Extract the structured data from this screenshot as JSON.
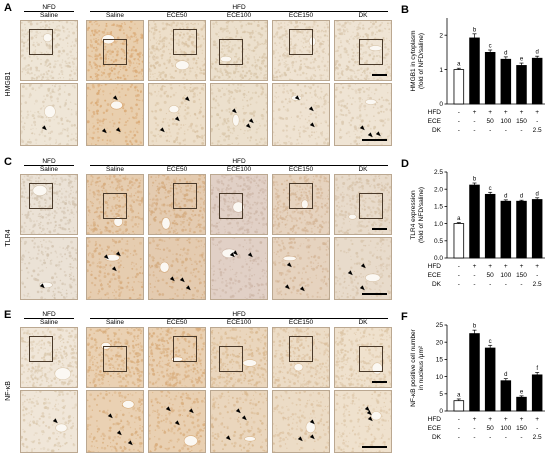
{
  "image_panels": [
    {
      "letter": "A",
      "stain": "HMGB1",
      "top": 0,
      "group_nfd": "NFD",
      "group_hfd": "HFD",
      "columns": [
        "Saline",
        "Saline",
        "ECE50",
        "ECE100",
        "ECE150",
        "DK"
      ],
      "tints": [
        "#efe6d7",
        "#e9cfae",
        "#eddfca",
        "#ece0cd",
        "#efe3d2",
        "#efe4d4"
      ],
      "dark_tints": [
        "#d8c8b0",
        "#d9a873",
        "#d7c0a0",
        "#d7c4a7",
        "#d9c6ab",
        "#d9c7ad"
      ]
    },
    {
      "letter": "C",
      "stain": "TLR4",
      "top": 154,
      "group_nfd": "NFD",
      "group_hfd": "HFD",
      "columns": [
        "Saline",
        "Saline",
        "ECE50",
        "ECE100",
        "ECE150",
        "DK"
      ],
      "tints": [
        "#ebe2d6",
        "#e6cdb0",
        "#e4cbb0",
        "#e1d0c6",
        "#e6d3bf",
        "#e8dbcb"
      ],
      "dark_tints": [
        "#d2c3af",
        "#d6ab7d",
        "#d4ab7f",
        "#cdb6a7",
        "#d4b596",
        "#d6c2a9"
      ]
    },
    {
      "letter": "E",
      "stain": "NF-κB",
      "top": 307,
      "group_nfd": "NFD",
      "group_hfd": "HFD",
      "columns": [
        "Saline",
        "Saline",
        "ECE50",
        "ECE100",
        "ECE150",
        "DK"
      ],
      "tints": [
        "#f0e6d8",
        "#ead1b3",
        "#e9d0b2",
        "#ead6bd",
        "#ecdcc6",
        "#efe1cd"
      ],
      "dark_tints": [
        "#dac8ad",
        "#d8ad7c",
        "#d8ac7b",
        "#d9b88f",
        "#dbbf9d",
        "#dcc5a6"
      ]
    }
  ],
  "chart_data": [
    {
      "letter": "B",
      "type": "bar",
      "ylabel_line1": "HMGB1 in cytoplasm",
      "ylabel_line2": "(fold of NFD/saline)",
      "ylim": [
        0,
        2.5
      ],
      "yticks": [
        "0",
        "1",
        "2"
      ],
      "ytick_values": [
        0,
        1,
        2
      ],
      "values": [
        1.0,
        1.92,
        1.5,
        1.3,
        1.12,
        1.33
      ],
      "errors": [
        0.04,
        0.12,
        0.07,
        0.07,
        0.07,
        0.06
      ],
      "letters": [
        "a",
        "b",
        "c",
        "d",
        "e",
        "d"
      ],
      "fills": [
        "#ffffff",
        "#000000",
        "#000000",
        "#000000",
        "#000000",
        "#000000"
      ],
      "rows": [
        {
          "label": "HFD",
          "values": [
            "-",
            "+",
            "+",
            "+",
            "+",
            "+"
          ]
        },
        {
          "label": "ECE",
          "values": [
            "-",
            "-",
            "50",
            "100",
            "150",
            "-"
          ]
        },
        {
          "label": "DK",
          "values": [
            "-",
            "-",
            "-",
            "-",
            "-",
            "2.5"
          ]
        }
      ]
    },
    {
      "letter": "D",
      "type": "bar",
      "ylabel_line1": "TLR4 expression",
      "ylabel_line2": "(fold of NFD/saline)",
      "ylim": [
        0,
        2.5
      ],
      "yticks": [
        "0.0",
        "0.5",
        "1.0",
        "1.5",
        "2.0",
        "2.5"
      ],
      "ytick_values": [
        0,
        0.5,
        1.0,
        1.5,
        2.0,
        2.5
      ],
      "values": [
        1.0,
        2.12,
        1.85,
        1.65,
        1.65,
        1.7
      ],
      "errors": [
        0.03,
        0.06,
        0.06,
        0.04,
        0.03,
        0.05
      ],
      "letters": [
        "a",
        "b",
        "c",
        "d",
        "d",
        "d"
      ],
      "fills": [
        "#ffffff",
        "#000000",
        "#000000",
        "#000000",
        "#000000",
        "#000000"
      ],
      "rows": [
        {
          "label": "HFD",
          "values": [
            "-",
            "+",
            "+",
            "+",
            "+",
            "+"
          ]
        },
        {
          "label": "ECE",
          "values": [
            "-",
            "-",
            "50",
            "100",
            "150",
            "-"
          ]
        },
        {
          "label": "DK",
          "values": [
            "-",
            "-",
            "-",
            "-",
            "-",
            "2.5"
          ]
        }
      ]
    },
    {
      "letter": "F",
      "type": "bar",
      "ylabel_line1": "NF-κB positive cell number",
      "ylabel_line2": "in nucleus /μm²",
      "ylim": [
        0,
        25
      ],
      "yticks": [
        "0",
        "5",
        "10",
        "15",
        "20",
        "25"
      ],
      "ytick_values": [
        0,
        5,
        10,
        15,
        20,
        25
      ],
      "values": [
        3.0,
        22.5,
        18.3,
        8.8,
        4.0,
        10.5
      ],
      "errors": [
        0.5,
        1.0,
        0.8,
        0.6,
        0.4,
        0.7
      ],
      "letters": [
        "a",
        "b",
        "c",
        "d",
        "e",
        "f"
      ],
      "fills": [
        "#ffffff",
        "#000000",
        "#000000",
        "#000000",
        "#000000",
        "#000000"
      ],
      "rows": [
        {
          "label": "HFD",
          "values": [
            "-",
            "+",
            "+",
            "+",
            "+",
            "+"
          ]
        },
        {
          "label": "ECE",
          "values": [
            "-",
            "-",
            "50",
            "100",
            "150",
            "-"
          ]
        },
        {
          "label": "DK",
          "values": [
            "-",
            "-",
            "-",
            "-",
            "-",
            "2.5"
          ]
        }
      ]
    }
  ]
}
